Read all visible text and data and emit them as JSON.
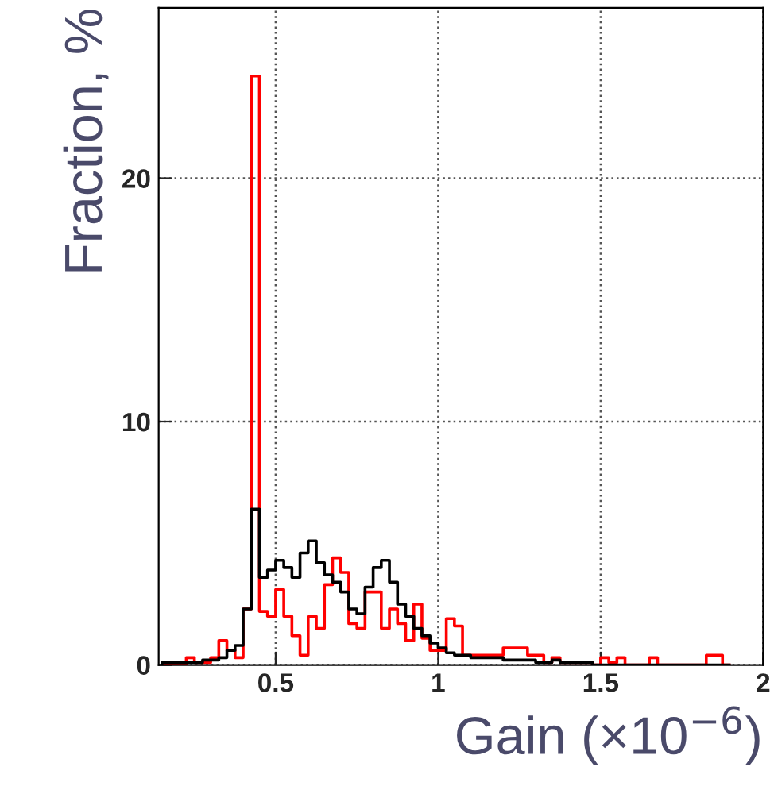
{
  "chart_data": {
    "type": "histogram",
    "xlabel": "Gain (×10$^{−6}$)",
    "ylabel": "Fraction, %",
    "bins": [
      0.15,
      0.175,
      0.2,
      0.225,
      0.25,
      0.275,
      0.3,
      0.325,
      0.35,
      0.375,
      0.4,
      0.425,
      0.45,
      0.475,
      0.5,
      0.525,
      0.55,
      0.575,
      0.6,
      0.625,
      0.65,
      0.675,
      0.7,
      0.725,
      0.75,
      0.775,
      0.8,
      0.825,
      0.85,
      0.875,
      0.9,
      0.925,
      0.95,
      0.975,
      1.0,
      1.025,
      1.05,
      1.075,
      1.1,
      1.125,
      1.15,
      1.175,
      1.2,
      1.225,
      1.25,
      1.275,
      1.3,
      1.325,
      1.35,
      1.375,
      1.4,
      1.425,
      1.45,
      1.475,
      1.5,
      1.525,
      1.55,
      1.575,
      1.6,
      1.625,
      1.65,
      1.675,
      1.7,
      1.725,
      1.75,
      1.775,
      1.8,
      1.825,
      1.85,
      1.875,
      1.9
    ],
    "series": [
      {
        "color": "#ff0000",
        "values": [
          0,
          0,
          0,
          0.3,
          0.1,
          0.1,
          0.3,
          1.0,
          0.6,
          0.3,
          2.3,
          24.2,
          2.2,
          2.0,
          3.1,
          2.0,
          1.2,
          0.4,
          2.0,
          1.5,
          3.3,
          4.4,
          3.8,
          1.7,
          1.5,
          3.0,
          3.0,
          1.5,
          2.3,
          1.7,
          1.0,
          2.5,
          1.1,
          0.6,
          0.6,
          1.9,
          1.6,
          0.4,
          0.4,
          0.4,
          0.4,
          0.4,
          0.7,
          0.7,
          0.7,
          0.4,
          0.4,
          0.1,
          0.3,
          0.1,
          0.1,
          0.1,
          0.1,
          0,
          0.3,
          0.1,
          0.3,
          0,
          0,
          0,
          0.3,
          0,
          0,
          0,
          0,
          0,
          0,
          0.4,
          0.4,
          0
        ]
      },
      {
        "color": "#000000",
        "values": [
          0.1,
          0.1,
          0.1,
          0.1,
          0.1,
          0.2,
          0.2,
          0.3,
          0.6,
          0.8,
          2.3,
          6.4,
          3.6,
          3.9,
          4.3,
          4.0,
          3.6,
          4.6,
          5.1,
          4.2,
          3.7,
          3.4,
          3.0,
          2.3,
          2.1,
          3.2,
          4.0,
          4.3,
          3.4,
          2.5,
          2.0,
          1.5,
          1.2,
          0.9,
          0.7,
          0.5,
          0.4,
          0.4,
          0.3,
          0.3,
          0.3,
          0.3,
          0.2,
          0.2,
          0.2,
          0.2,
          0.1,
          0.1,
          0.2,
          0.1,
          0.1,
          0.1,
          0.1,
          0,
          0,
          0,
          0,
          0,
          0,
          0,
          0,
          0,
          0,
          0,
          0,
          0,
          0,
          0,
          0,
          0
        ]
      }
    ],
    "xlim": [
      0.14,
      2
    ],
    "ylim": [
      0,
      27
    ],
    "xticks": [
      0.5,
      1,
      1.5,
      2
    ],
    "yticks": [
      0,
      10,
      20
    ],
    "grid": true,
    "line_style": "solid"
  }
}
